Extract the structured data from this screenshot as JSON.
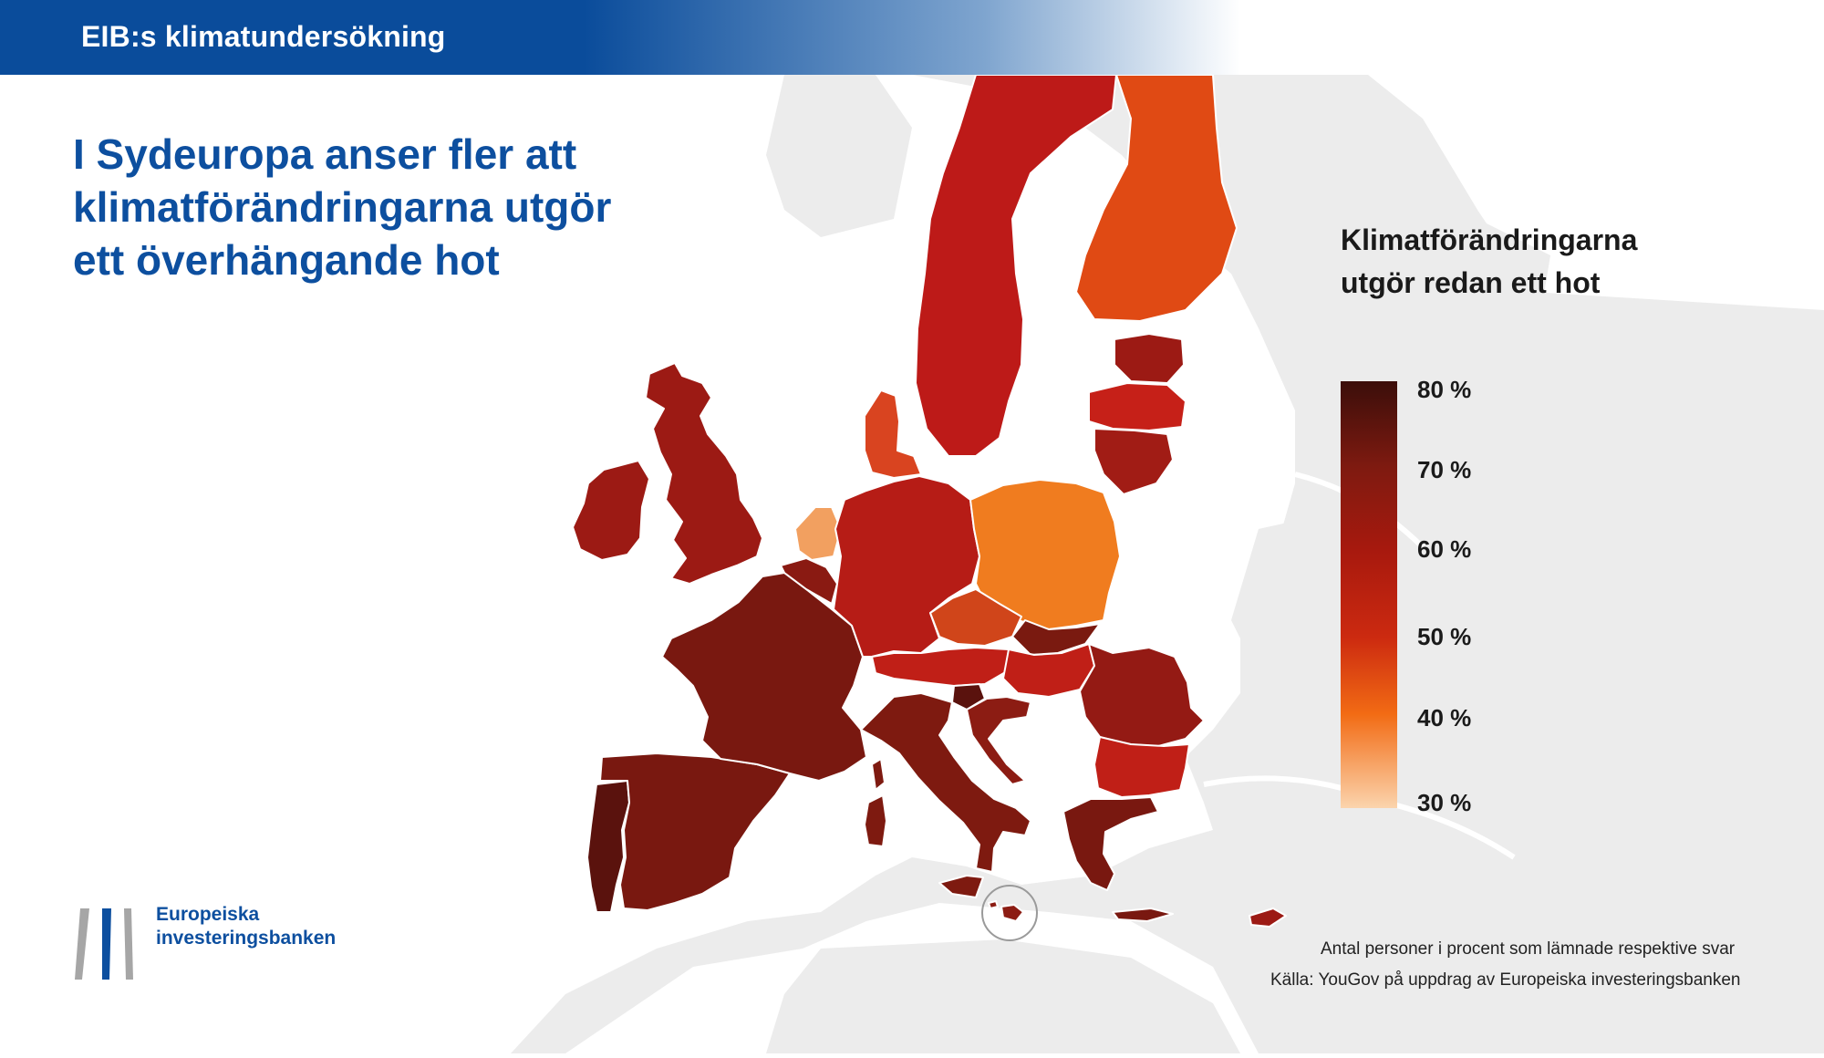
{
  "header": {
    "title": "EIB:s klimatundersökning"
  },
  "headline": {
    "lines": [
      "I Sydeuropa anser fler att",
      "klimatförändringarna utgör",
      "ett överhängande hot"
    ]
  },
  "legend": {
    "title_lines": [
      "Klimatförändringarna",
      "utgör redan ett hot"
    ],
    "ticks": [
      "80 %",
      "70 %",
      "60 %",
      "50 %",
      "40 %",
      "30 %"
    ],
    "range": [
      30,
      80
    ],
    "colors": [
      "#3b0e0a",
      "#7e1a10",
      "#a8190e",
      "#cc2a10",
      "#f26b14",
      "#fbd4ad"
    ]
  },
  "footer": {
    "note": "Antal personer i procent som lämnade respektive svar",
    "source": "Källa: YouGov på uppdrag av Europeiska investeringsbanken"
  },
  "logo": {
    "lines": [
      "Europeiska",
      "investeringsbanken"
    ],
    "colors": {
      "grey": "#a6a6a6",
      "blue": "#0d4f9f"
    }
  },
  "colors": {
    "brand_blue": "#0a4c9b",
    "background_land": "#ececec",
    "borders": "#ffffff"
  }
}
